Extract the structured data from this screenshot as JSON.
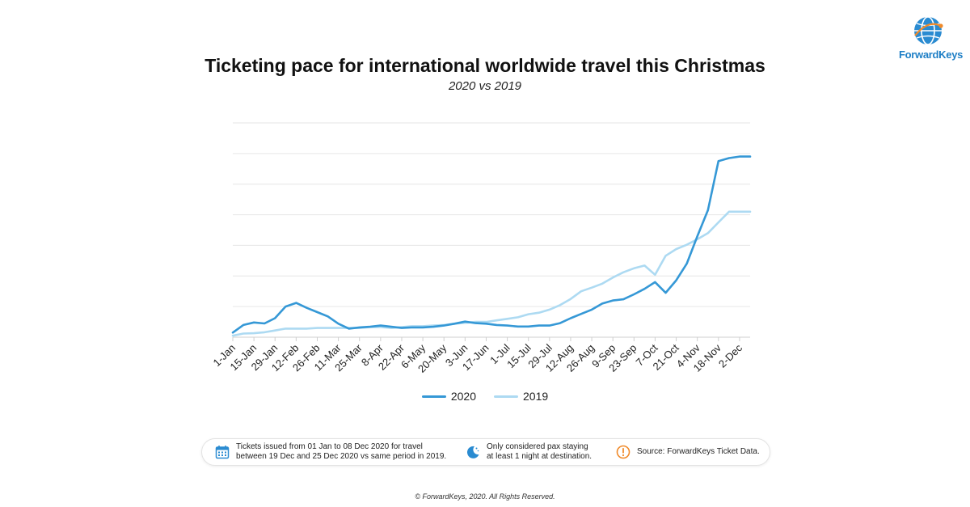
{
  "brand": {
    "name": "ForwardKeys",
    "color": "#1e7fc6",
    "icon": "globe-icon"
  },
  "chart_data": {
    "type": "line",
    "title": "Ticketing pace for international worldwide travel this Christmas",
    "subtitle": "2020 vs 2019",
    "xlabel": "",
    "ylabel": "",
    "grid": true,
    "legend_position": "bottom",
    "y_axis_labels": false,
    "ylim": [
      0,
      7
    ],
    "x": [
      "1-Jan",
      "8-Jan",
      "15-Jan",
      "22-Jan",
      "29-Jan",
      "5-Feb",
      "12-Feb",
      "19-Feb",
      "26-Feb",
      "4-Mar",
      "11-Mar",
      "18-Mar",
      "25-Mar",
      "1-Apr",
      "8-Apr",
      "15-Apr",
      "22-Apr",
      "29-Apr",
      "6-May",
      "13-May",
      "20-May",
      "27-May",
      "3-Jun",
      "10-Jun",
      "17-Jun",
      "24-Jun",
      "1-Jul",
      "8-Jul",
      "15-Jul",
      "22-Jul",
      "29-Jul",
      "5-Aug",
      "12-Aug",
      "19-Aug",
      "26-Aug",
      "2-Sep",
      "9-Sep",
      "16-Sep",
      "23-Sep",
      "30-Sep",
      "7-Oct",
      "14-Oct",
      "21-Oct",
      "28-Oct",
      "4-Nov",
      "11-Nov",
      "18-Nov",
      "25-Nov",
      "2-Dec",
      "8-Dec"
    ],
    "tick_labels": [
      "1-Jan",
      "15-Jan",
      "29-Jan",
      "12-Feb",
      "26-Feb",
      "11-Mar",
      "25-Mar",
      "8-Apr",
      "22-Apr",
      "6-May",
      "20-May",
      "3-Jun",
      "17-Jun",
      "1-Jul",
      "15-Jul",
      "29-Jul",
      "12-Aug",
      "26-Aug",
      "9-Sep",
      "23-Sep",
      "7-Oct",
      "21-Oct",
      "4-Nov",
      "18-Nov",
      "2-Dec"
    ],
    "series": [
      {
        "name": "2020",
        "color": "#3598d6",
        "values": [
          0.15,
          0.4,
          0.48,
          0.45,
          0.62,
          1.0,
          1.12,
          0.96,
          0.82,
          0.68,
          0.44,
          0.28,
          0.32,
          0.34,
          0.38,
          0.34,
          0.3,
          0.32,
          0.32,
          0.34,
          0.38,
          0.44,
          0.51,
          0.46,
          0.44,
          0.4,
          0.38,
          0.35,
          0.35,
          0.38,
          0.38,
          0.46,
          0.62,
          0.76,
          0.9,
          1.1,
          1.2,
          1.24,
          1.4,
          1.58,
          1.8,
          1.45,
          1.86,
          2.4,
          3.3,
          4.15,
          5.75,
          5.85,
          5.9,
          5.9
        ]
      },
      {
        "name": "2019",
        "color": "#addaf2",
        "values": [
          0.05,
          0.12,
          0.13,
          0.16,
          0.22,
          0.28,
          0.28,
          0.28,
          0.3,
          0.3,
          0.3,
          0.3,
          0.3,
          0.33,
          0.33,
          0.3,
          0.33,
          0.36,
          0.36,
          0.38,
          0.4,
          0.44,
          0.47,
          0.5,
          0.5,
          0.55,
          0.6,
          0.65,
          0.75,
          0.8,
          0.9,
          1.05,
          1.25,
          1.5,
          1.62,
          1.75,
          1.95,
          2.12,
          2.25,
          2.34,
          2.04,
          2.66,
          2.88,
          3.02,
          3.2,
          3.4,
          3.75,
          4.1,
          4.1,
          4.1
        ]
      }
    ]
  },
  "notes": [
    {
      "icon": "calendar-icon",
      "line1": "Tickets issued from 01 Jan to 08 Dec 2020 for travel",
      "line2": "between 19 Dec and 25 Dec 2020 vs same period in 2019."
    },
    {
      "icon": "moon-icon",
      "line1": "Only considered pax staying",
      "line2": "at least 1 night at destination."
    },
    {
      "icon": "warning-icon",
      "line1": "Source: ForwardKeys Ticket Data."
    }
  ],
  "footer": "© ForwardKeys, 2020. All Rights Reserved."
}
